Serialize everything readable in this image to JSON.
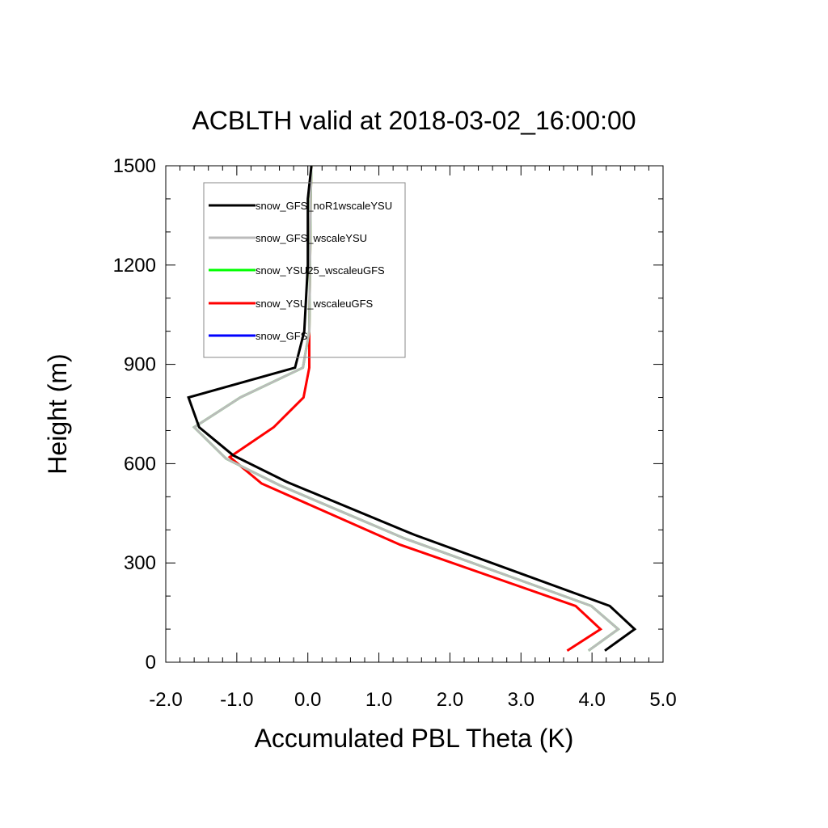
{
  "chart_data": {
    "type": "line",
    "title": "ACBLTH valid at 2018-03-02_16:00:00",
    "xlabel": "Accumulated PBL Theta (K)",
    "ylabel": "Height (m)",
    "xlim": [
      -2.0,
      5.0
    ],
    "ylim": [
      0,
      1500
    ],
    "xticks": [
      -2.0,
      -1.0,
      0.0,
      1.0,
      2.0,
      3.0,
      4.0,
      5.0
    ],
    "xtick_labels": [
      "-2.0",
      "-1.0",
      "0.0",
      "1.0",
      "2.0",
      "3.0",
      "4.0",
      "5.0"
    ],
    "yticks": [
      0,
      300,
      600,
      900,
      1200,
      1500
    ],
    "ytick_labels": [
      "0",
      "300",
      "600",
      "900",
      "1200",
      "1500"
    ],
    "grid": false,
    "legend_position": "top-left",
    "series": [
      {
        "name": "snow_GFS_noR1wscaleYSU",
        "color": "#000000",
        "points": [
          [
            4.18,
            35
          ],
          [
            4.6,
            100
          ],
          [
            4.25,
            170
          ],
          [
            1.5,
            385
          ],
          [
            -0.3,
            545
          ],
          [
            -1.05,
            625
          ],
          [
            -1.53,
            710
          ],
          [
            -1.68,
            800
          ],
          [
            -0.18,
            890
          ],
          [
            -0.05,
            1000
          ],
          [
            0.0,
            1200
          ],
          [
            0.0,
            1400
          ],
          [
            0.05,
            1500
          ]
        ]
      },
      {
        "name": "snow_GFS_wscaleYSU",
        "color": "#bbbbbb",
        "points": [
          [
            3.95,
            35
          ],
          [
            4.37,
            100
          ],
          [
            3.99,
            170
          ],
          [
            1.35,
            375
          ],
          [
            -0.4,
            535
          ],
          [
            -1.15,
            615
          ],
          [
            -1.6,
            710
          ],
          [
            -0.95,
            800
          ],
          [
            -0.07,
            890
          ],
          [
            0.02,
            1000
          ],
          [
            0.03,
            1200
          ],
          [
            0.04,
            1400
          ],
          [
            0.05,
            1500
          ]
        ]
      },
      {
        "name": "snow_YSU25_wscaleuGFS",
        "color": "#00ff00",
        "points": [
          [
            3.95,
            35
          ],
          [
            4.37,
            100
          ],
          [
            3.99,
            170
          ],
          [
            1.35,
            375
          ],
          [
            -0.4,
            535
          ],
          [
            -1.15,
            615
          ],
          [
            -1.6,
            710
          ],
          [
            -0.95,
            800
          ],
          [
            -0.07,
            890
          ],
          [
            0.02,
            1000
          ],
          [
            0.03,
            1200
          ],
          [
            0.04,
            1400
          ],
          [
            0.05,
            1500
          ]
        ]
      },
      {
        "name": "snow_YSU_wscaleuGFS",
        "color": "#ff0000",
        "points": [
          [
            3.65,
            35
          ],
          [
            4.12,
            100
          ],
          [
            3.77,
            170
          ],
          [
            1.3,
            355
          ],
          [
            -0.65,
            540
          ],
          [
            -1.1,
            620
          ],
          [
            -0.48,
            710
          ],
          [
            -0.06,
            800
          ],
          [
            0.02,
            890
          ],
          [
            0.02,
            1000
          ],
          [
            0.03,
            1200
          ],
          [
            0.04,
            1400
          ],
          [
            0.05,
            1500
          ]
        ]
      },
      {
        "name": "snow_GFS",
        "color": "#0000ff",
        "points": []
      }
    ]
  }
}
